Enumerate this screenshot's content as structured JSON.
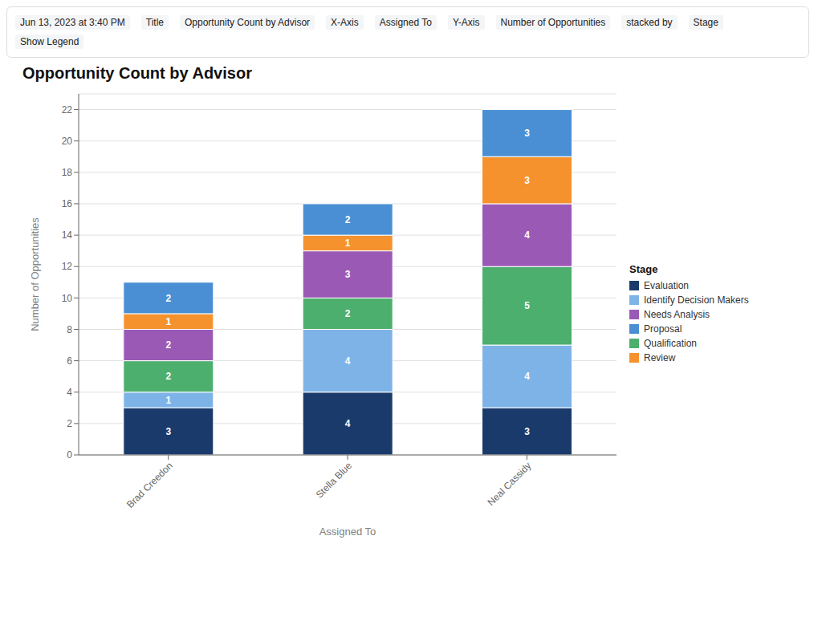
{
  "chart_data": {
    "type": "bar",
    "stacked": true,
    "title": "Opportunity Count by Advisor",
    "xlabel": "Assigned To",
    "ylabel": "Number of Opportunities",
    "categories": [
      "Brad Creedon",
      "Stella Blue",
      "Neal Cassidy"
    ],
    "series": [
      {
        "name": "Evaluation",
        "color": "#1a3a6b",
        "values": [
          3,
          4,
          3
        ]
      },
      {
        "name": "Identify Decision Makers",
        "color": "#7eb3e8",
        "values": [
          1,
          4,
          4
        ]
      },
      {
        "name": "Qualification",
        "color": "#4caf6e",
        "values": [
          2,
          2,
          5
        ]
      },
      {
        "name": "Needs Analysis",
        "color": "#9b59b6",
        "values": [
          2,
          3,
          4
        ]
      },
      {
        "name": "Review",
        "color": "#f5922e",
        "values": [
          1,
          1,
          3
        ]
      },
      {
        "name": "Proposal",
        "color": "#4a8fd4",
        "values": [
          2,
          2,
          3
        ]
      }
    ],
    "ylim": [
      0,
      23
    ],
    "yticks": [
      0,
      2,
      4,
      6,
      8,
      10,
      12,
      14,
      16,
      18,
      20,
      22
    ],
    "grid": true,
    "legend": "right",
    "legend_title": "Stage",
    "data_labels": true,
    "annotations": [
      "Jun 13, 2023 at 3:40 PM",
      "Title",
      "Opportunity Count by Advisor",
      "X-Axis",
      "Assigned To",
      "Y-Axis",
      "Number of Opportunities",
      "stacked by",
      "Stage",
      "Show Legend"
    ]
  }
}
